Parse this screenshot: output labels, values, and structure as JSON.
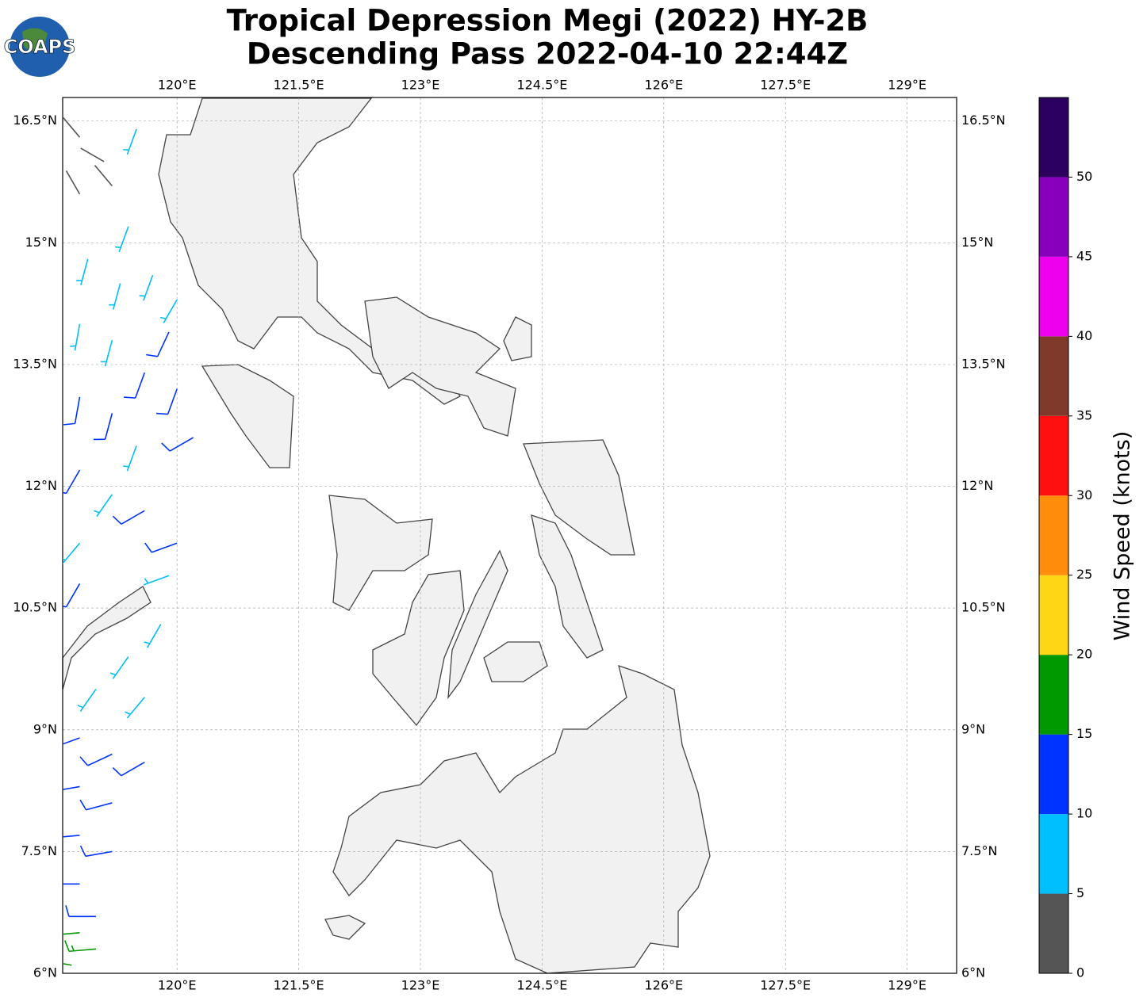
{
  "logo": "COAPS",
  "title": "Tropical Depression Megi (2022) HY-2B",
  "subtitle": "Descending Pass 2022-04-10 22:44Z",
  "map": {
    "xlim": [
      118.59,
      129.61
    ],
    "ylim": [
      6,
      16.79
    ],
    "xticks": [
      {
        "value": 120,
        "label": "120°E"
      },
      {
        "value": 121.5,
        "label": "121.5°E"
      },
      {
        "value": 123,
        "label": "123°E"
      },
      {
        "value": 124.5,
        "label": "124.5°E"
      },
      {
        "value": 126,
        "label": "126°E"
      },
      {
        "value": 127.5,
        "label": "127.5°E"
      },
      {
        "value": 129,
        "label": "129°E"
      }
    ],
    "yticks": [
      {
        "value": 6,
        "label": "6°N"
      },
      {
        "value": 7.5,
        "label": "7.5°N"
      },
      {
        "value": 9,
        "label": "9°N"
      },
      {
        "value": 10.5,
        "label": "10.5°N"
      },
      {
        "value": 12,
        "label": "12°N"
      },
      {
        "value": 13.5,
        "label": "13.5°N"
      },
      {
        "value": 15,
        "label": "15°N"
      },
      {
        "value": 16.5,
        "label": "16.5°N"
      }
    ],
    "grid": true,
    "wind_barbs": [
      {
        "lon": 118.8,
        "lat": 16.3,
        "speed": 3,
        "direction": 320
      },
      {
        "lon": 119.1,
        "lat": 16.0,
        "speed": 3,
        "direction": 300
      },
      {
        "lon": 118.8,
        "lat": 15.6,
        "speed": 4,
        "direction": 330
      },
      {
        "lon": 119.2,
        "lat": 15.7,
        "speed": 4,
        "direction": 320
      },
      {
        "lon": 119.5,
        "lat": 16.4,
        "speed": 7,
        "direction": 200
      },
      {
        "lon": 119.4,
        "lat": 15.2,
        "speed": 7,
        "direction": 200
      },
      {
        "lon": 118.9,
        "lat": 14.8,
        "speed": 7,
        "direction": 195
      },
      {
        "lon": 119.3,
        "lat": 14.5,
        "speed": 8,
        "direction": 195
      },
      {
        "lon": 119.7,
        "lat": 14.6,
        "speed": 8,
        "direction": 200
      },
      {
        "lon": 120.0,
        "lat": 14.3,
        "speed": 9,
        "direction": 210
      },
      {
        "lon": 118.8,
        "lat": 14.0,
        "speed": 8,
        "direction": 190
      },
      {
        "lon": 119.2,
        "lat": 13.8,
        "speed": 9,
        "direction": 195
      },
      {
        "lon": 119.9,
        "lat": 13.9,
        "speed": 12,
        "direction": 205
      },
      {
        "lon": 119.6,
        "lat": 13.4,
        "speed": 12,
        "direction": 200
      },
      {
        "lon": 118.8,
        "lat": 13.1,
        "speed": 11,
        "direction": 190
      },
      {
        "lon": 119.2,
        "lat": 12.9,
        "speed": 12,
        "direction": 195
      },
      {
        "lon": 120.0,
        "lat": 13.2,
        "speed": 13,
        "direction": 200
      },
      {
        "lon": 120.2,
        "lat": 12.6,
        "speed": 12,
        "direction": 240
      },
      {
        "lon": 119.5,
        "lat": 12.5,
        "speed": 8,
        "direction": 200
      },
      {
        "lon": 118.8,
        "lat": 12.2,
        "speed": 12,
        "direction": 210
      },
      {
        "lon": 119.2,
        "lat": 11.9,
        "speed": 8,
        "direction": 215
      },
      {
        "lon": 119.6,
        "lat": 11.7,
        "speed": 13,
        "direction": 240
      },
      {
        "lon": 120.0,
        "lat": 11.3,
        "speed": 12,
        "direction": 250
      },
      {
        "lon": 118.8,
        "lat": 11.3,
        "speed": 7,
        "direction": 220
      },
      {
        "lon": 119.9,
        "lat": 10.9,
        "speed": 8,
        "direction": 250
      },
      {
        "lon": 118.8,
        "lat": 10.8,
        "speed": 12,
        "direction": 210
      },
      {
        "lon": 119.8,
        "lat": 10.3,
        "speed": 8,
        "direction": 210
      },
      {
        "lon": 119.4,
        "lat": 9.9,
        "speed": 8,
        "direction": 215
      },
      {
        "lon": 119.0,
        "lat": 9.5,
        "speed": 7,
        "direction": 215
      },
      {
        "lon": 119.6,
        "lat": 9.4,
        "speed": 8,
        "direction": 220
      },
      {
        "lon": 118.8,
        "lat": 8.9,
        "speed": 12,
        "direction": 250
      },
      {
        "lon": 119.2,
        "lat": 8.7,
        "speed": 12,
        "direction": 245
      },
      {
        "lon": 119.6,
        "lat": 8.6,
        "speed": 12,
        "direction": 240
      },
      {
        "lon": 118.8,
        "lat": 8.3,
        "speed": 13,
        "direction": 260
      },
      {
        "lon": 119.2,
        "lat": 8.1,
        "speed": 13,
        "direction": 255
      },
      {
        "lon": 118.8,
        "lat": 7.7,
        "speed": 13,
        "direction": 265
      },
      {
        "lon": 119.2,
        "lat": 7.5,
        "speed": 12,
        "direction": 260
      },
      {
        "lon": 118.8,
        "lat": 7.1,
        "speed": 13,
        "direction": 270
      },
      {
        "lon": 119.0,
        "lat": 6.7,
        "speed": 12,
        "direction": 270
      },
      {
        "lon": 118.8,
        "lat": 6.5,
        "speed": 17,
        "direction": 265
      },
      {
        "lon": 119.0,
        "lat": 6.3,
        "speed": 17,
        "direction": 265
      },
      {
        "lon": 118.7,
        "lat": 6.1,
        "speed": 16,
        "direction": 280
      }
    ]
  },
  "colorbar": {
    "label": "Wind Speed (knots)",
    "lim": [
      0,
      55
    ],
    "bounds": [
      0,
      5,
      10,
      15,
      20,
      25,
      30,
      35,
      40,
      45,
      50,
      55
    ],
    "colors": [
      "#555555",
      "#00bfff",
      "#0033ff",
      "#009900",
      "#ffd614",
      "#ff8c0a",
      "#ff1010",
      "#7f3a2c",
      "#ee00ee",
      "#8800bb",
      "#2c005f"
    ],
    "ticks": [
      0,
      5,
      10,
      15,
      20,
      25,
      30,
      35,
      40,
      45,
      50
    ]
  }
}
